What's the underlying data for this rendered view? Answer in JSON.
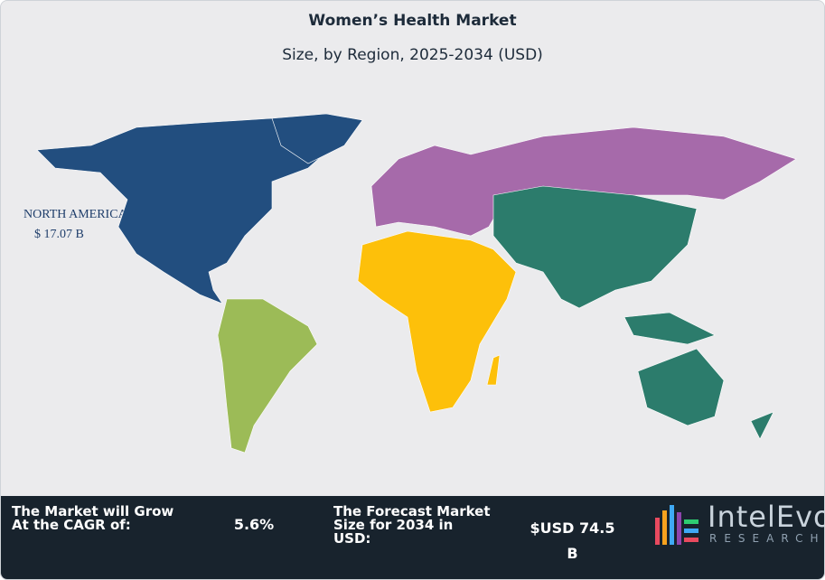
{
  "header": {
    "title": "Women’s Health Market",
    "subtitle": "Size, by Region, 2025-2034 (USD)"
  },
  "map": {
    "label": {
      "name": "NORTH AMERICA",
      "value_label": "$ 17.07 B"
    },
    "region_colors": {
      "north_america": "#224e7f",
      "south_america": "#9cbb57",
      "europe": "#a66aaa",
      "africa": "#fdc00a",
      "asia_pacific": "#2c7c6c"
    }
  },
  "footer": {
    "cagr_text": "The Market will Grow At the CAGR of:",
    "cagr_value": "5.6%",
    "forecast_text": "The Forecast Market Size for 2034 in USD:",
    "forecast_value": "$USD 74.5 B",
    "logo": {
      "name": "IntelEvo",
      "tagline": "RESEARCH"
    }
  }
}
